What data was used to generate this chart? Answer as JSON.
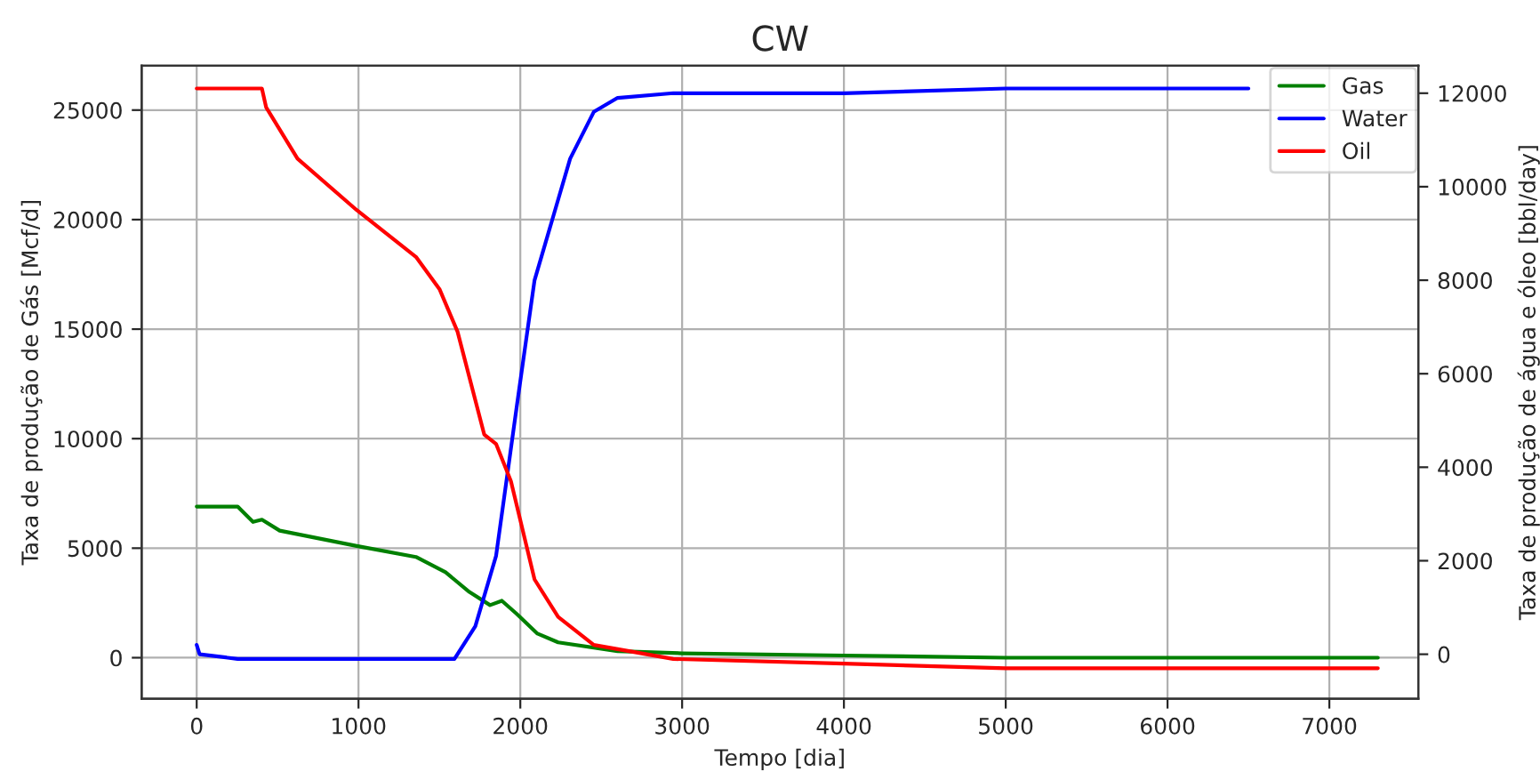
{
  "chart_data": {
    "type": "line",
    "title": "CW",
    "xlabel": "Tempo [dia]",
    "ylabel": "Taxa de produção de Gás [Mcf/d]",
    "y2label": "Taxa de produção de água e óleo [bbl/day]",
    "xlim": [
      -340,
      7550
    ],
    "xticks": [
      0,
      1000,
      2000,
      3000,
      4000,
      5000,
      6000,
      7000
    ],
    "ylim": [
      -1870,
      27030
    ],
    "yticks": [
      0,
      5000,
      10000,
      15000,
      20000,
      25000
    ],
    "y2lim": [
      -950,
      12590
    ],
    "y2ticks": [
      0,
      2000,
      4000,
      6000,
      8000,
      10000,
      12000
    ],
    "grid": true,
    "legend": "top right",
    "marker": "none",
    "line_style": "solid",
    "series": [
      {
        "name": "Gas",
        "color": "#008000",
        "x": [
          0,
          253,
          348,
          403,
          513,
          989,
          1355,
          1538,
          1685,
          1813,
          1886,
          1978,
          2106,
          2234,
          2601,
          3000,
          4000,
          5000,
          7300
        ],
        "values": [
          6900,
          6900,
          6200,
          6300,
          5800,
          5100,
          4600,
          3900,
          3000,
          2400,
          2600,
          2000,
          1100,
          700,
          300,
          200,
          100,
          0,
          0
        ]
      },
      {
        "name": "Water",
        "color": "#0000ff",
        "axis": "y2",
        "x": [
          0,
          18,
          253,
          385,
          769,
          1593,
          1722,
          1850,
          1978,
          2088,
          2198,
          2308,
          2454,
          2601,
          2945,
          4000,
          5000,
          6500
        ],
        "values": [
          200,
          0,
          -100,
          -100,
          -100,
          -100,
          600,
          2100,
          5300,
          8000,
          9300,
          10600,
          11600,
          11900,
          12000,
          12000,
          12100,
          12100
        ]
      },
      {
        "name": "Oil",
        "color": "#ff0000",
        "axis": "y2",
        "x": [
          0,
          403,
          429,
          623,
          989,
          1355,
          1502,
          1612,
          1777,
          1850,
          1942,
          2088,
          2234,
          2454,
          2945,
          4000,
          5000,
          7300
        ],
        "values": [
          12100,
          12100,
          11700,
          10600,
          9500,
          8500,
          7800,
          6900,
          4700,
          4500,
          3700,
          1600,
          800,
          200,
          -100,
          -200,
          -300,
          -300
        ]
      }
    ]
  }
}
